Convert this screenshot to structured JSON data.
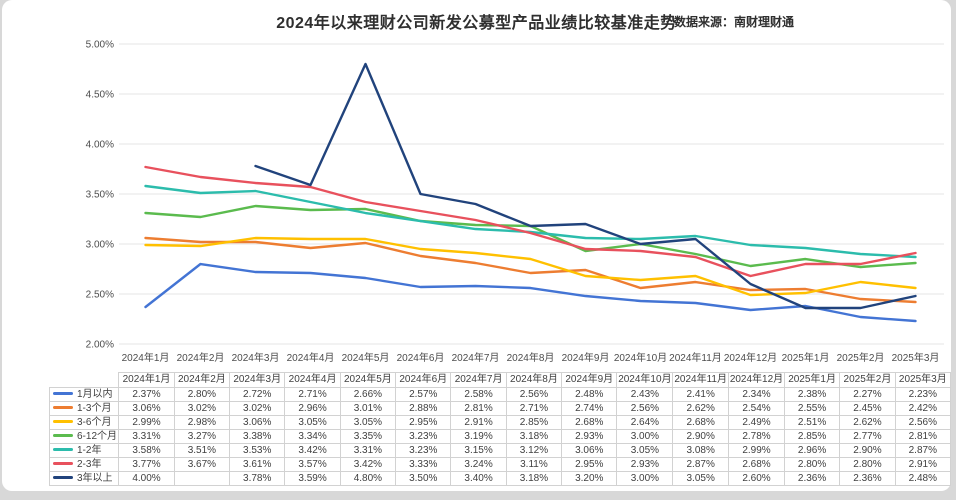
{
  "page": {
    "background_color": "#D8D8D8",
    "card_color": "#FFFFFF"
  },
  "chart_data": {
    "type": "line",
    "title": "2024年以来理财公司新发公募型产品业绩比较基准走势",
    "source": "数据来源：南财理财通",
    "xlabel": "",
    "ylabel": "",
    "ylim": [
      2.0,
      5.0
    ],
    "y_ticks": [
      "5.00%",
      "4.50%",
      "4.00%",
      "3.50%",
      "3.00%",
      "2.50%",
      "2.00%"
    ],
    "grid": "horizontal",
    "gridline_color": "#E6E6E6",
    "legend_position": "table-left-column",
    "value_suffix": "%",
    "categories": [
      "2024年1月",
      "2024年2月",
      "2024年3月",
      "2024年4月",
      "2024年5月",
      "2024年6月",
      "2024年7月",
      "2024年8月",
      "2024年9月",
      "2024年10月",
      "2024年11月",
      "2024年12月",
      "2025年1月",
      "2025年2月",
      "2025年3月"
    ],
    "series": [
      {
        "name": "1月以内",
        "color": "#4374D4",
        "values": [
          2.37,
          2.8,
          2.72,
          2.71,
          2.66,
          2.57,
          2.58,
          2.56,
          2.48,
          2.43,
          2.41,
          2.34,
          2.38,
          2.27,
          2.23
        ]
      },
      {
        "name": "1-3个月",
        "color": "#ED7D31",
        "values": [
          3.06,
          3.02,
          3.02,
          2.96,
          3.01,
          2.88,
          2.81,
          2.71,
          2.74,
          2.56,
          2.62,
          2.54,
          2.55,
          2.45,
          2.42
        ]
      },
      {
        "name": "3-6个月",
        "color": "#FFC000",
        "values": [
          2.99,
          2.98,
          3.06,
          3.05,
          3.05,
          2.95,
          2.91,
          2.85,
          2.68,
          2.64,
          2.68,
          2.49,
          2.51,
          2.62,
          2.56
        ]
      },
      {
        "name": "6-12个月",
        "color": "#5BBB4E",
        "values": [
          3.31,
          3.27,
          3.38,
          3.34,
          3.35,
          3.23,
          3.19,
          3.18,
          2.93,
          3.0,
          2.9,
          2.78,
          2.85,
          2.77,
          2.81
        ]
      },
      {
        "name": "1-2年",
        "color": "#2CBCAC",
        "values": [
          3.58,
          3.51,
          3.53,
          3.42,
          3.31,
          3.23,
          3.15,
          3.12,
          3.06,
          3.05,
          3.08,
          2.99,
          2.96,
          2.9,
          2.87
        ]
      },
      {
        "name": "2-3年",
        "color": "#E8515D",
        "values": [
          3.77,
          3.67,
          3.61,
          3.57,
          3.42,
          3.33,
          3.24,
          3.11,
          2.95,
          2.93,
          2.87,
          2.68,
          2.8,
          2.8,
          2.91
        ]
      },
      {
        "name": "3年以上",
        "color": "#21437C",
        "values": [
          4.0,
          null,
          3.78,
          3.59,
          4.8,
          3.5,
          3.4,
          3.18,
          3.2,
          3.0,
          3.05,
          2.6,
          2.36,
          2.36,
          2.48
        ]
      }
    ]
  }
}
